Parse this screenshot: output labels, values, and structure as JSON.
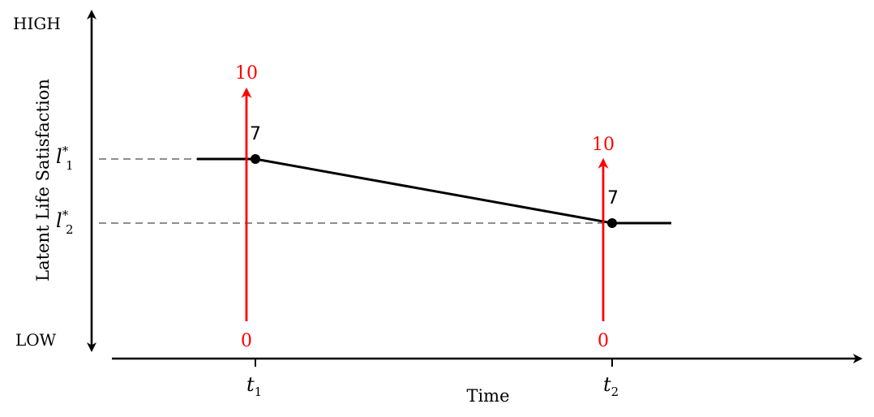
{
  "y_axis": {
    "label": "Latent Life Satisfaction",
    "high_label": "HIGH",
    "low_label": "LOW",
    "levels": [
      {
        "symbol": "l",
        "subscript": "1",
        "superscript": "*"
      },
      {
        "symbol": "l",
        "subscript": "2",
        "superscript": "*"
      }
    ]
  },
  "x_axis": {
    "label": "Time",
    "ticks": [
      {
        "symbol": "t",
        "subscript": "1"
      },
      {
        "symbol": "t",
        "subscript": "2"
      }
    ]
  },
  "scales": [
    {
      "top_label": "10",
      "bottom_label": "0",
      "point_label": "7"
    },
    {
      "top_label": "10",
      "bottom_label": "0",
      "point_label": "7"
    }
  ],
  "colors": {
    "axis": "#000000",
    "path": "#000000",
    "scale": "#ff0000",
    "guide": "#7f7f7f"
  }
}
